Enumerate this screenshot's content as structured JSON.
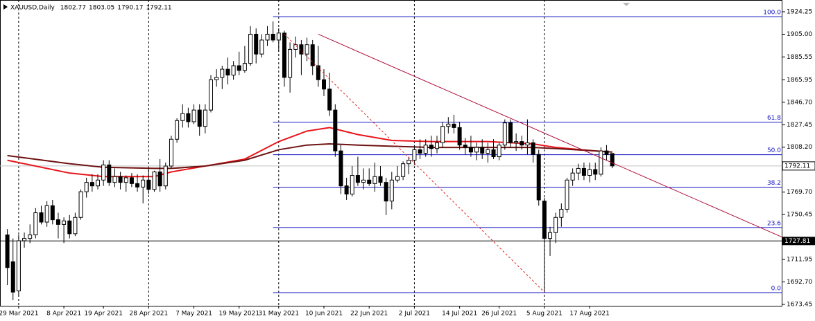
{
  "chart_data": {
    "type": "candlestick",
    "title": "XAUUSD,Daily",
    "candles": [
      [
        1733,
        1738,
        1690,
        1705
      ],
      [
        1710,
        1730,
        1677,
        1684
      ],
      [
        1685,
        1733,
        1680,
        1728
      ],
      [
        1728,
        1735,
        1722,
        1730
      ],
      [
        1730,
        1742,
        1726,
        1733
      ],
      [
        1733,
        1756,
        1730,
        1752
      ],
      [
        1752,
        1758,
        1742,
        1744
      ],
      [
        1744,
        1762,
        1740,
        1758
      ],
      [
        1758,
        1763,
        1742,
        1746
      ],
      [
        1746,
        1752,
        1730,
        1742
      ],
      [
        1742,
        1748,
        1726,
        1745
      ],
      [
        1745,
        1750,
        1730,
        1734
      ],
      [
        1734,
        1752,
        1732,
        1748
      ],
      [
        1748,
        1772,
        1746,
        1770
      ],
      [
        1770,
        1782,
        1765,
        1778
      ],
      [
        1778,
        1785,
        1770,
        1775
      ],
      [
        1775,
        1785,
        1772,
        1780
      ],
      [
        1780,
        1797,
        1775,
        1793
      ],
      [
        1793,
        1797,
        1775,
        1778
      ],
      [
        1778,
        1790,
        1774,
        1783
      ],
      [
        1783,
        1787,
        1772,
        1778
      ],
      [
        1778,
        1784,
        1770,
        1782
      ],
      [
        1782,
        1786,
        1774,
        1777
      ],
      [
        1777,
        1785,
        1770,
        1774
      ],
      [
        1774,
        1784,
        1760,
        1780
      ],
      [
        1780,
        1790,
        1768,
        1772
      ],
      [
        1772,
        1788,
        1770,
        1787
      ],
      [
        1787,
        1798,
        1770,
        1775
      ],
      [
        1775,
        1795,
        1772,
        1792
      ],
      [
        1792,
        1818,
        1790,
        1815
      ],
      [
        1815,
        1833,
        1812,
        1831
      ],
      [
        1831,
        1845,
        1825,
        1837
      ],
      [
        1837,
        1842,
        1825,
        1830
      ],
      [
        1830,
        1845,
        1828,
        1840
      ],
      [
        1840,
        1845,
        1818,
        1826
      ],
      [
        1826,
        1845,
        1820,
        1840
      ],
      [
        1840,
        1870,
        1838,
        1866
      ],
      [
        1866,
        1875,
        1860,
        1868
      ],
      [
        1868,
        1878,
        1858,
        1875
      ],
      [
        1875,
        1885,
        1862,
        1870
      ],
      [
        1870,
        1882,
        1866,
        1878
      ],
      [
        1878,
        1890,
        1870,
        1874
      ],
      [
        1874,
        1895,
        1872,
        1880
      ],
      [
        1880,
        1912,
        1878,
        1905
      ],
      [
        1905,
        1910,
        1880,
        1888
      ],
      [
        1888,
        1905,
        1885,
        1900
      ],
      [
        1900,
        1912,
        1895,
        1905
      ],
      [
        1905,
        1916,
        1898,
        1900
      ],
      [
        1900,
        1910,
        1890,
        1906
      ],
      [
        1906,
        1908,
        1860,
        1868
      ],
      [
        1868,
        1898,
        1855,
        1892
      ],
      [
        1892,
        1903,
        1885,
        1896
      ],
      [
        1896,
        1900,
        1870,
        1888
      ],
      [
        1888,
        1902,
        1882,
        1896
      ],
      [
        1896,
        1900,
        1870,
        1878
      ],
      [
        1878,
        1895,
        1860,
        1866
      ],
      [
        1866,
        1875,
        1852,
        1858
      ],
      [
        1858,
        1872,
        1835,
        1840
      ],
      [
        1840,
        1845,
        1800,
        1805
      ],
      [
        1805,
        1810,
        1768,
        1775
      ],
      [
        1775,
        1782,
        1763,
        1768
      ],
      [
        1768,
        1792,
        1766,
        1784
      ],
      [
        1784,
        1800,
        1775,
        1778
      ],
      [
        1778,
        1790,
        1772,
        1780
      ],
      [
        1780,
        1790,
        1775,
        1777
      ],
      [
        1777,
        1795,
        1770,
        1783
      ],
      [
        1783,
        1792,
        1775,
        1778
      ],
      [
        1778,
        1782,
        1750,
        1762
      ],
      [
        1762,
        1787,
        1755,
        1780
      ],
      [
        1780,
        1792,
        1778,
        1783
      ],
      [
        1783,
        1796,
        1780,
        1794
      ],
      [
        1794,
        1800,
        1785,
        1797
      ],
      [
        1797,
        1810,
        1793,
        1806
      ],
      [
        1806,
        1815,
        1798,
        1803
      ],
      [
        1803,
        1815,
        1800,
        1810
      ],
      [
        1810,
        1818,
        1800,
        1807
      ],
      [
        1807,
        1818,
        1803,
        1812
      ],
      [
        1812,
        1830,
        1808,
        1826
      ],
      [
        1826,
        1834,
        1820,
        1828
      ],
      [
        1828,
        1836,
        1820,
        1825
      ],
      [
        1825,
        1830,
        1806,
        1810
      ],
      [
        1810,
        1816,
        1802,
        1808
      ],
      [
        1808,
        1818,
        1800,
        1804
      ],
      [
        1804,
        1812,
        1797,
        1808
      ],
      [
        1808,
        1815,
        1798,
        1803
      ],
      [
        1803,
        1812,
        1795,
        1806
      ],
      [
        1806,
        1815,
        1798,
        1800
      ],
      [
        1800,
        1812,
        1797,
        1810
      ],
      [
        1810,
        1832,
        1806,
        1829
      ],
      [
        1829,
        1832,
        1808,
        1812
      ],
      [
        1812,
        1820,
        1805,
        1813
      ],
      [
        1813,
        1818,
        1806,
        1810
      ],
      [
        1810,
        1832,
        1802,
        1812
      ],
      [
        1812,
        1815,
        1795,
        1802
      ],
      [
        1802,
        1806,
        1758,
        1763
      ],
      [
        1762,
        1765,
        1684,
        1730
      ],
      [
        1730,
        1740,
        1715,
        1735
      ],
      [
        1735,
        1752,
        1726,
        1748
      ],
      [
        1748,
        1760,
        1740,
        1755
      ],
      [
        1755,
        1782,
        1752,
        1780
      ],
      [
        1780,
        1790,
        1775,
        1786
      ],
      [
        1786,
        1794,
        1780,
        1790
      ],
      [
        1790,
        1795,
        1780,
        1784
      ],
      [
        1784,
        1795,
        1778,
        1789
      ],
      [
        1789,
        1795,
        1780,
        1785
      ],
      [
        1785,
        1808,
        1783,
        1805
      ],
      [
        1805,
        1810,
        1797,
        1802
      ],
      [
        1802.77,
        1803.05,
        1790.17,
        1792.11
      ]
    ],
    "colors": {
      "up": "#ffffff",
      "down": "#000000",
      "outline": "#000000"
    },
    "xlim": [
      -1.3,
      137.1
    ],
    "xticks": [
      {
        "value": 2,
        "label": "29 Mar 2021"
      },
      {
        "value": 10,
        "label": "8 Apr 2021"
      },
      {
        "value": 17,
        "label": "19 Apr 2021"
      },
      {
        "value": 25,
        "label": "28 Apr 2021"
      },
      {
        "value": 33,
        "label": "7 May 2021"
      },
      {
        "value": 41,
        "label": "19 May 2021"
      },
      {
        "value": 48,
        "label": "31 May 2021"
      },
      {
        "value": 56,
        "label": "10 Jun 2021"
      },
      {
        "value": 64,
        "label": "22 Jun 2021"
      },
      {
        "value": 72,
        "label": "2 Jul 2021"
      },
      {
        "value": 80,
        "label": "14 Jul 2021"
      },
      {
        "value": 87,
        "label": "26 Jul 2021"
      },
      {
        "value": 95,
        "label": "5 Aug 2021"
      },
      {
        "value": 103,
        "label": "17 Aug 2021"
      }
    ],
    "ylim": [
      1672.26,
      1934.33
    ],
    "yticks": [
      1924.25,
      {
        "value": 1905,
        "label": "1905.00"
      },
      1885.55,
      1865.95,
      {
        "value": 1846.7,
        "label": "1846.70"
      },
      1827.45,
      {
        "value": 1808.2,
        "label": "1808.20"
      },
      {
        "value": 1769.7,
        "label": "1769.70"
      },
      1750.45,
      1711.95,
      {
        "value": 1692.7,
        "label": "1692.70"
      },
      1673.45
    ],
    "grid": true,
    "lines": [
      {
        "color": "#e8141a",
        "x": [
          0,
          11,
          17,
          26,
          29,
          35,
          42,
          48,
          53,
          57,
          62,
          68,
          75,
          85,
          93,
          97,
          104,
          107
        ],
        "values": [
          1797,
          1786,
          1783,
          1783,
          1787,
          1792,
          1798,
          1813,
          1822,
          1825,
          1819,
          1814,
          1813,
          1813,
          1811,
          1808,
          1805,
          1804
        ]
      },
      {
        "color": "#6e1212",
        "x": [
          0,
          11,
          17,
          26,
          29,
          35,
          42,
          48,
          53,
          57,
          62,
          68,
          75,
          85,
          93,
          97,
          104,
          107
        ],
        "values": [
          1801,
          1794,
          1791,
          1790,
          1790,
          1792,
          1797,
          1806,
          1810,
          1811,
          1810,
          1809,
          1808,
          1808,
          1808,
          1807,
          1805,
          1804
        ]
      }
    ],
    "trendlines": [
      {
        "color": "#b0103a",
        "dashed": false,
        "x": [
          55,
          137.1
        ],
        "values": [
          1905,
          1731
        ]
      },
      {
        "color": "#e02020",
        "dashed": true,
        "x": [
          49,
          95
        ],
        "values": [
          1905,
          1684
        ]
      }
    ],
    "fibonacci": {
      "color": "#1010c0",
      "x": [
        47,
        137.1
      ],
      "levels": [
        {
          "label": "100.0",
          "value": 1920
        },
        {
          "label": "61.8",
          "value": 1829.7
        },
        {
          "label": "50.0",
          "value": 1801.75
        },
        {
          "label": "38.2",
          "value": 1773.8
        },
        {
          "label": "23.6",
          "value": 1739.3
        },
        {
          "label": "0.0",
          "value": 1683.5
        }
      ]
    },
    "hlines": [
      {
        "value": 1727.81,
        "color": "#000000"
      }
    ]
  }
}
